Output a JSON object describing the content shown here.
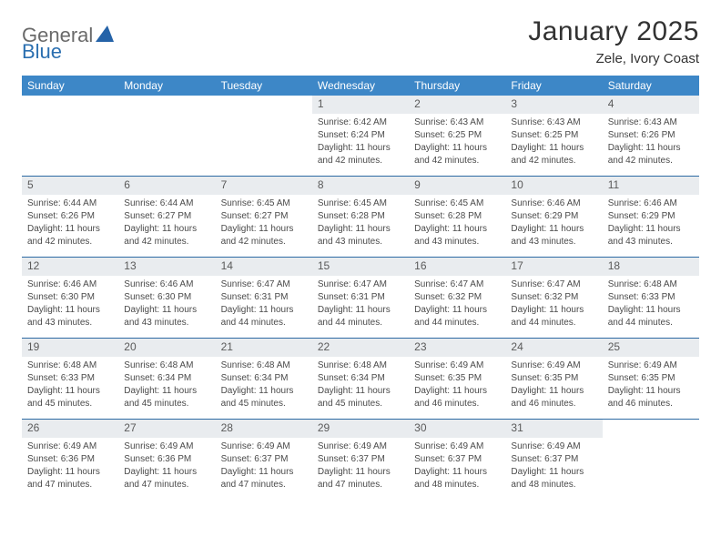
{
  "logo": {
    "word1": "General",
    "word2": "Blue"
  },
  "title": "January 2025",
  "location": "Zele, Ivory Coast",
  "colors": {
    "header_bg": "#3d87c7",
    "header_text": "#ffffff",
    "daynum_bg": "#e9ecef",
    "rule": "#2d6aa3",
    "logo_gray": "#6a6a6a",
    "logo_blue": "#2b6fb0",
    "triangle": "#2563a8"
  },
  "weekdays": [
    "Sunday",
    "Monday",
    "Tuesday",
    "Wednesday",
    "Thursday",
    "Friday",
    "Saturday"
  ],
  "weeks": [
    [
      {
        "empty": true
      },
      {
        "empty": true
      },
      {
        "empty": true
      },
      {
        "num": "1",
        "sunrise": "Sunrise: 6:42 AM",
        "sunset": "Sunset: 6:24 PM",
        "day": "Daylight: 11 hours",
        "min": "and 42 minutes."
      },
      {
        "num": "2",
        "sunrise": "Sunrise: 6:43 AM",
        "sunset": "Sunset: 6:25 PM",
        "day": "Daylight: 11 hours",
        "min": "and 42 minutes."
      },
      {
        "num": "3",
        "sunrise": "Sunrise: 6:43 AM",
        "sunset": "Sunset: 6:25 PM",
        "day": "Daylight: 11 hours",
        "min": "and 42 minutes."
      },
      {
        "num": "4",
        "sunrise": "Sunrise: 6:43 AM",
        "sunset": "Sunset: 6:26 PM",
        "day": "Daylight: 11 hours",
        "min": "and 42 minutes."
      }
    ],
    [
      {
        "num": "5",
        "sunrise": "Sunrise: 6:44 AM",
        "sunset": "Sunset: 6:26 PM",
        "day": "Daylight: 11 hours",
        "min": "and 42 minutes."
      },
      {
        "num": "6",
        "sunrise": "Sunrise: 6:44 AM",
        "sunset": "Sunset: 6:27 PM",
        "day": "Daylight: 11 hours",
        "min": "and 42 minutes."
      },
      {
        "num": "7",
        "sunrise": "Sunrise: 6:45 AM",
        "sunset": "Sunset: 6:27 PM",
        "day": "Daylight: 11 hours",
        "min": "and 42 minutes."
      },
      {
        "num": "8",
        "sunrise": "Sunrise: 6:45 AM",
        "sunset": "Sunset: 6:28 PM",
        "day": "Daylight: 11 hours",
        "min": "and 43 minutes."
      },
      {
        "num": "9",
        "sunrise": "Sunrise: 6:45 AM",
        "sunset": "Sunset: 6:28 PM",
        "day": "Daylight: 11 hours",
        "min": "and 43 minutes."
      },
      {
        "num": "10",
        "sunrise": "Sunrise: 6:46 AM",
        "sunset": "Sunset: 6:29 PM",
        "day": "Daylight: 11 hours",
        "min": "and 43 minutes."
      },
      {
        "num": "11",
        "sunrise": "Sunrise: 6:46 AM",
        "sunset": "Sunset: 6:29 PM",
        "day": "Daylight: 11 hours",
        "min": "and 43 minutes."
      }
    ],
    [
      {
        "num": "12",
        "sunrise": "Sunrise: 6:46 AM",
        "sunset": "Sunset: 6:30 PM",
        "day": "Daylight: 11 hours",
        "min": "and 43 minutes."
      },
      {
        "num": "13",
        "sunrise": "Sunrise: 6:46 AM",
        "sunset": "Sunset: 6:30 PM",
        "day": "Daylight: 11 hours",
        "min": "and 43 minutes."
      },
      {
        "num": "14",
        "sunrise": "Sunrise: 6:47 AM",
        "sunset": "Sunset: 6:31 PM",
        "day": "Daylight: 11 hours",
        "min": "and 44 minutes."
      },
      {
        "num": "15",
        "sunrise": "Sunrise: 6:47 AM",
        "sunset": "Sunset: 6:31 PM",
        "day": "Daylight: 11 hours",
        "min": "and 44 minutes."
      },
      {
        "num": "16",
        "sunrise": "Sunrise: 6:47 AM",
        "sunset": "Sunset: 6:32 PM",
        "day": "Daylight: 11 hours",
        "min": "and 44 minutes."
      },
      {
        "num": "17",
        "sunrise": "Sunrise: 6:47 AM",
        "sunset": "Sunset: 6:32 PM",
        "day": "Daylight: 11 hours",
        "min": "and 44 minutes."
      },
      {
        "num": "18",
        "sunrise": "Sunrise: 6:48 AM",
        "sunset": "Sunset: 6:33 PM",
        "day": "Daylight: 11 hours",
        "min": "and 44 minutes."
      }
    ],
    [
      {
        "num": "19",
        "sunrise": "Sunrise: 6:48 AM",
        "sunset": "Sunset: 6:33 PM",
        "day": "Daylight: 11 hours",
        "min": "and 45 minutes."
      },
      {
        "num": "20",
        "sunrise": "Sunrise: 6:48 AM",
        "sunset": "Sunset: 6:34 PM",
        "day": "Daylight: 11 hours",
        "min": "and 45 minutes."
      },
      {
        "num": "21",
        "sunrise": "Sunrise: 6:48 AM",
        "sunset": "Sunset: 6:34 PM",
        "day": "Daylight: 11 hours",
        "min": "and 45 minutes."
      },
      {
        "num": "22",
        "sunrise": "Sunrise: 6:48 AM",
        "sunset": "Sunset: 6:34 PM",
        "day": "Daylight: 11 hours",
        "min": "and 45 minutes."
      },
      {
        "num": "23",
        "sunrise": "Sunrise: 6:49 AM",
        "sunset": "Sunset: 6:35 PM",
        "day": "Daylight: 11 hours",
        "min": "and 46 minutes."
      },
      {
        "num": "24",
        "sunrise": "Sunrise: 6:49 AM",
        "sunset": "Sunset: 6:35 PM",
        "day": "Daylight: 11 hours",
        "min": "and 46 minutes."
      },
      {
        "num": "25",
        "sunrise": "Sunrise: 6:49 AM",
        "sunset": "Sunset: 6:35 PM",
        "day": "Daylight: 11 hours",
        "min": "and 46 minutes."
      }
    ],
    [
      {
        "num": "26",
        "sunrise": "Sunrise: 6:49 AM",
        "sunset": "Sunset: 6:36 PM",
        "day": "Daylight: 11 hours",
        "min": "and 47 minutes."
      },
      {
        "num": "27",
        "sunrise": "Sunrise: 6:49 AM",
        "sunset": "Sunset: 6:36 PM",
        "day": "Daylight: 11 hours",
        "min": "and 47 minutes."
      },
      {
        "num": "28",
        "sunrise": "Sunrise: 6:49 AM",
        "sunset": "Sunset: 6:37 PM",
        "day": "Daylight: 11 hours",
        "min": "and 47 minutes."
      },
      {
        "num": "29",
        "sunrise": "Sunrise: 6:49 AM",
        "sunset": "Sunset: 6:37 PM",
        "day": "Daylight: 11 hours",
        "min": "and 47 minutes."
      },
      {
        "num": "30",
        "sunrise": "Sunrise: 6:49 AM",
        "sunset": "Sunset: 6:37 PM",
        "day": "Daylight: 11 hours",
        "min": "and 48 minutes."
      },
      {
        "num": "31",
        "sunrise": "Sunrise: 6:49 AM",
        "sunset": "Sunset: 6:37 PM",
        "day": "Daylight: 11 hours",
        "min": "and 48 minutes."
      },
      {
        "empty": true
      }
    ]
  ]
}
